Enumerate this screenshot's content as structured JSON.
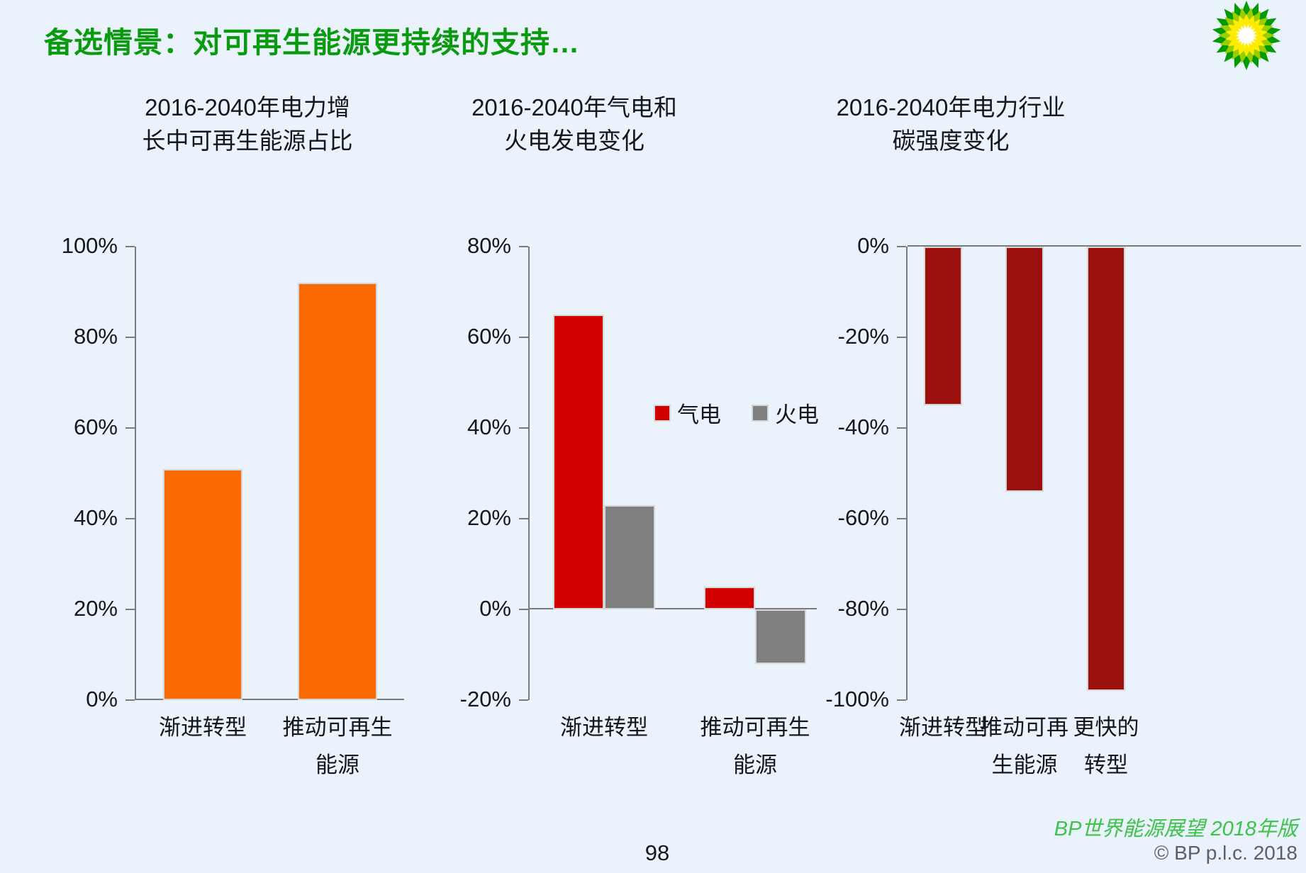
{
  "page": {
    "title": "备选情景：对可再生能源更持续的支持…",
    "background": "#EAF2FC",
    "title_color": "#0A9A0F"
  },
  "footer": {
    "source": "BP世界能源展望 2018年版",
    "copyright": "© BP p.l.c. 2018",
    "page_number": "98"
  },
  "logo": {
    "name": "bp-helios-logo",
    "colors": {
      "outer": "#009B00",
      "mid": "#9CCD00",
      "inner": "#FFEC00",
      "center": "#FFFFFF"
    }
  },
  "chart_data": [
    {
      "type": "bar",
      "title": "2016-2040年电力增长中可再生能源占比",
      "title_lines": [
        "2016-2040年电力增",
        "长中可再生能源占比"
      ],
      "categories": [
        [
          "渐进转型"
        ],
        [
          "推动可再生",
          "能源"
        ]
      ],
      "values": [
        51,
        92
      ],
      "bar_color": "#FA6A00",
      "ylim": [
        0,
        100
      ],
      "yticks": [
        100,
        80,
        60,
        40,
        20,
        0
      ],
      "tick_suffix": "%",
      "grid": false,
      "legend_position": "none"
    },
    {
      "type": "bar",
      "title": "2016-2040年气电和火电发电变化",
      "title_lines": [
        "2016-2040年气电和",
        "火电发电变化"
      ],
      "categories": [
        [
          "渐进转型"
        ],
        [
          "推动可再生",
          "能源"
        ]
      ],
      "series": [
        {
          "name": "气电",
          "color": "#D40000",
          "values": [
            65,
            5
          ]
        },
        {
          "name": "火电",
          "color": "#7F7F7F",
          "values": [
            23,
            -12
          ]
        }
      ],
      "legend": [
        "气电",
        "火电"
      ],
      "legend_position": "middle-right",
      "ylim": [
        -20,
        80
      ],
      "yticks": [
        80,
        60,
        40,
        20,
        0,
        -20
      ],
      "tick_suffix": "%",
      "grid": false
    },
    {
      "type": "bar",
      "title": "2016-2040年电力行业碳强度变化",
      "title_lines": [
        "2016-2040年电力行业",
        "碳强度变化"
      ],
      "categories": [
        [
          "渐进转型"
        ],
        [
          "推动可再",
          "生能源"
        ],
        [
          "更快的",
          "转型"
        ]
      ],
      "values": [
        -35,
        -54,
        -98
      ],
      "bar_color": "#9B0F0F",
      "ylim": [
        -100,
        0
      ],
      "yticks": [
        0,
        -20,
        -40,
        -60,
        -80,
        -100
      ],
      "tick_suffix": "%",
      "grid": false,
      "legend_position": "none"
    }
  ]
}
